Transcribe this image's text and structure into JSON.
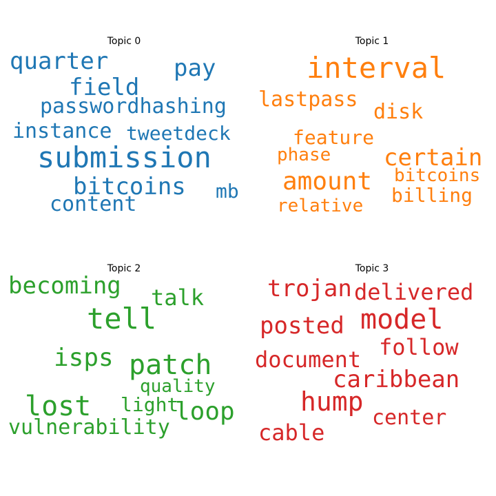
{
  "topics": [
    {
      "title": "Topic 0",
      "color": "#1f77b4",
      "words": [
        "quarter",
        "pay",
        "field",
        "passwordhashing",
        "instance",
        "tweetdeck",
        "submission",
        "bitcoins",
        "mb",
        "content"
      ]
    },
    {
      "title": "Topic 1",
      "color": "#ff7f0e",
      "words": [
        "interval",
        "lastpass",
        "disk",
        "feature",
        "phase",
        "certain",
        "bitcoins",
        "amount",
        "billing",
        "relative"
      ]
    },
    {
      "title": "Topic 2",
      "color": "#2ca02c",
      "words": [
        "becoming",
        "talk",
        "tell",
        "isps",
        "patch",
        "quality",
        "lost",
        "light",
        "loop",
        "vulnerability"
      ]
    },
    {
      "title": "Topic 3",
      "color": "#d62728",
      "words": [
        "trojan",
        "delivered",
        "model",
        "posted",
        "follow",
        "document",
        "caribbean",
        "hump",
        "center",
        "cable"
      ]
    }
  ]
}
